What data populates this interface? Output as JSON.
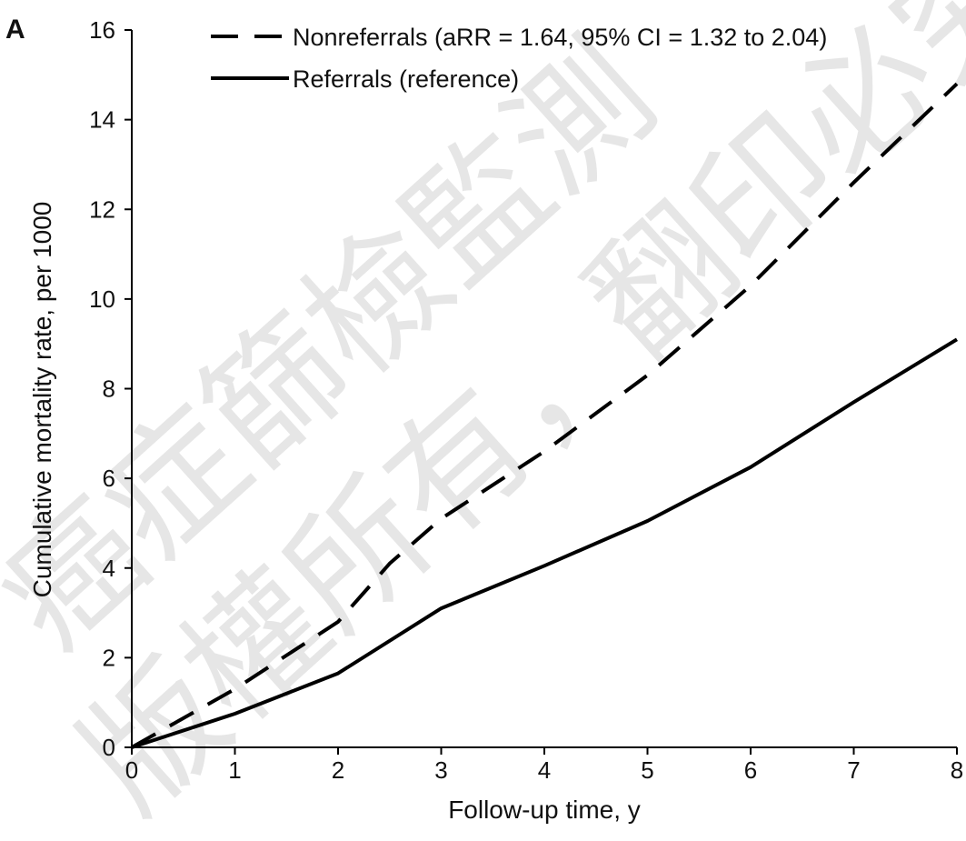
{
  "chart_data": {
    "type": "line",
    "panel_label": "A",
    "xlabel": "Follow-up time, y",
    "ylabel": "Cumulative mortality rate, per 1000",
    "xlim": [
      0,
      8
    ],
    "ylim": [
      0,
      16
    ],
    "x_ticks": [
      0,
      1,
      2,
      3,
      4,
      5,
      6,
      7,
      8
    ],
    "y_ticks": [
      0,
      2,
      4,
      6,
      8,
      10,
      12,
      14,
      16
    ],
    "grid": false,
    "legend_position": "top",
    "series": [
      {
        "name": "Nonreferrals (aRR = 1.64, 95% CI = 1.32 to 2.04)",
        "style": "dashed",
        "color": "#000000",
        "x": [
          0,
          1,
          2,
          2.5,
          3,
          4,
          5,
          6,
          7,
          8
        ],
        "y": [
          0,
          1.3,
          2.8,
          4.1,
          5.1,
          6.6,
          8.3,
          10.3,
          12.6,
          14.8
        ]
      },
      {
        "name": "Referrals (reference)",
        "style": "solid",
        "color": "#000000",
        "x": [
          0,
          1,
          2,
          3,
          4,
          5,
          6,
          7,
          8
        ],
        "y": [
          0,
          0.75,
          1.65,
          3.1,
          4.05,
          5.05,
          6.25,
          7.7,
          9.1
        ]
      }
    ]
  },
  "watermark": {
    "row1": "癌症篩檢監測",
    "row2": "版權所有，翻印必究"
  }
}
